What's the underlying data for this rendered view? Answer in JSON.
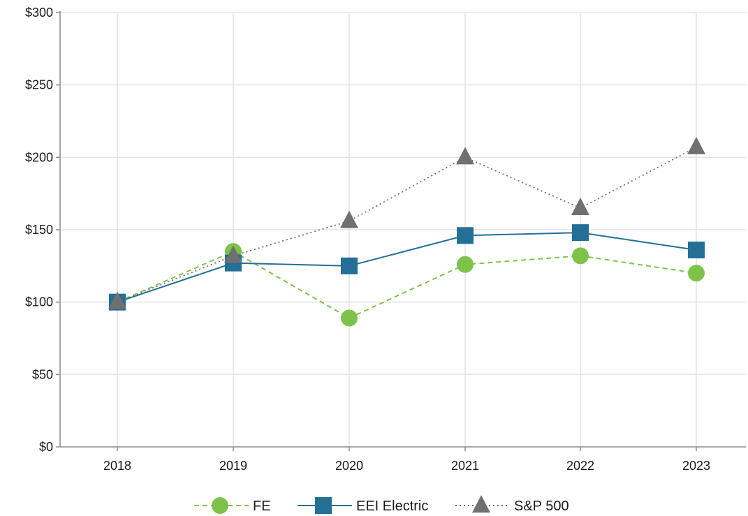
{
  "chart_data": {
    "type": "line",
    "title": "",
    "xlabel": "",
    "ylabel": "",
    "categories": [
      "2018",
      "2019",
      "2020",
      "2021",
      "2022",
      "2023"
    ],
    "ylim": [
      0,
      300
    ],
    "yticks": [
      0,
      50,
      100,
      150,
      200,
      250,
      300
    ],
    "ytick_labels": [
      "$0",
      "$50",
      "$100",
      "$150",
      "$200",
      "$250",
      "$300"
    ],
    "grid": true,
    "legend_position": "bottom",
    "series": [
      {
        "name": "FE",
        "values": [
          100,
          135,
          89,
          126,
          132,
          120
        ],
        "color": "#7dc34a",
        "marker": "circle",
        "line_style": "dashed"
      },
      {
        "name": "EEI Electric",
        "values": [
          100,
          127,
          125,
          146,
          148,
          136
        ],
        "color": "#236f96",
        "marker": "square",
        "line_style": "solid"
      },
      {
        "name": "S&P 500",
        "values": [
          100,
          132,
          156,
          200,
          165,
          207
        ],
        "color": "#707070",
        "marker": "triangle",
        "line_style": "dotted"
      }
    ]
  }
}
